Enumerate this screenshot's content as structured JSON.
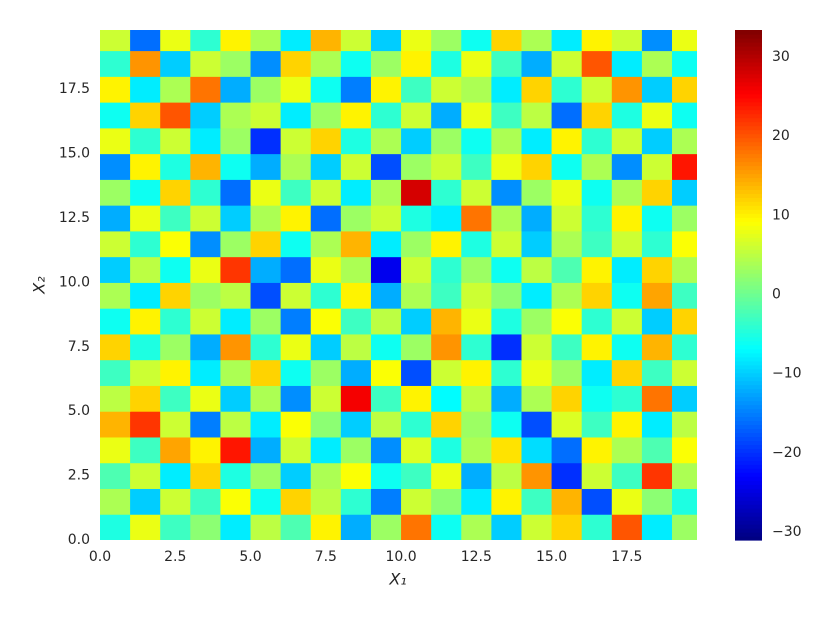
{
  "chart_data": {
    "type": "heatmap",
    "colormap": "jet",
    "xlabel": "X₁",
    "ylabel": "X₂",
    "x": [
      0.5,
      1.5,
      2.5,
      3.5,
      4.5,
      5.5,
      6.5,
      7.5,
      8.5,
      9.5,
      10.5,
      11.5,
      12.5,
      13.5,
      14.5,
      15.5,
      16.5,
      17.5,
      18.5,
      19.5
    ],
    "y": [
      0.5,
      1.5,
      2.5,
      3.5,
      4.5,
      5.5,
      6.5,
      7.5,
      8.5,
      9.5,
      10.5,
      11.5,
      12.5,
      13.5,
      14.5,
      15.5,
      16.5,
      17.5,
      18.5,
      19.5
    ],
    "z": [
      [
        -5,
        8,
        -3,
        2,
        -8,
        5,
        -2,
        10,
        -12,
        3,
        18,
        -6,
        4,
        -10,
        6,
        12,
        -4,
        20,
        -8,
        3
      ],
      [
        4,
        -10,
        6,
        -3,
        9,
        -6,
        12,
        5,
        -4,
        -15,
        6,
        2,
        -8,
        10,
        -3,
        14,
        -18,
        8,
        2,
        -5
      ],
      [
        -2,
        6,
        -8,
        12,
        -5,
        3,
        -10,
        4,
        9,
        -6,
        -3,
        8,
        -12,
        5,
        16,
        -20,
        6,
        -3,
        22,
        4
      ],
      [
        8,
        -3,
        15,
        10,
        24,
        -12,
        6,
        -8,
        3,
        -14,
        7,
        -5,
        4,
        11,
        -9,
        -16,
        10,
        4,
        -2,
        9
      ],
      [
        14,
        22,
        6,
        -15,
        5,
        -8,
        9,
        2,
        -10,
        5,
        -4,
        12,
        3,
        -6,
        -18,
        7,
        -3,
        10,
        -8,
        5
      ],
      [
        5,
        12,
        -3,
        8,
        -10,
        4,
        -14,
        6,
        26,
        -3,
        10,
        -7,
        5,
        -12,
        4,
        12,
        -6,
        -4,
        18,
        -10
      ],
      [
        -3,
        6,
        10,
        -8,
        4,
        12,
        -6,
        3,
        -12,
        9,
        -18,
        6,
        10,
        -4,
        8,
        3,
        -8,
        12,
        -3,
        6
      ],
      [
        12,
        -5,
        3,
        -12,
        16,
        -4,
        8,
        -10,
        5,
        -6,
        3,
        16,
        -4,
        -20,
        6,
        -3,
        10,
        -6,
        14,
        -4
      ],
      [
        -6,
        10,
        -4,
        6,
        -8,
        3,
        -15,
        9,
        -3,
        5,
        -10,
        14,
        8,
        -5,
        3,
        9,
        -4,
        6,
        -10,
        12
      ],
      [
        4,
        -8,
        12,
        3,
        5,
        -18,
        6,
        -4,
        10,
        -12,
        4,
        -3,
        6,
        2,
        -8,
        4,
        12,
        -6,
        15,
        -3
      ],
      [
        -10,
        5,
        -6,
        8,
        22,
        -12,
        -16,
        8,
        4,
        -24,
        6,
        -4,
        3,
        -6,
        5,
        -2,
        10,
        -8,
        12,
        4
      ],
      [
        6,
        -4,
        9,
        -14,
        3,
        12,
        -6,
        4,
        14,
        -8,
        3,
        10,
        -5,
        6,
        -10,
        4,
        -3,
        6,
        -4,
        9
      ],
      [
        -12,
        8,
        -3,
        6,
        -10,
        4,
        10,
        -16,
        3,
        6,
        -5,
        -8,
        18,
        4,
        -12,
        6,
        -4,
        10,
        -6,
        3
      ],
      [
        3,
        -6,
        12,
        -4,
        -16,
        8,
        -3,
        6,
        -8,
        4,
        28,
        -4,
        6,
        -14,
        3,
        8,
        -6,
        4,
        12,
        -10
      ],
      [
        -14,
        10,
        -5,
        14,
        -6,
        -12,
        4,
        -10,
        6,
        -18,
        3,
        6,
        -3,
        8,
        12,
        -6,
        4,
        -14,
        6,
        24
      ],
      [
        8,
        -4,
        6,
        -8,
        3,
        -20,
        6,
        12,
        -5,
        4,
        -10,
        3,
        -6,
        4,
        -8,
        10,
        -4,
        6,
        -10,
        4
      ],
      [
        -6,
        12,
        20,
        -10,
        4,
        6,
        -8,
        3,
        10,
        -4,
        6,
        -12,
        8,
        -3,
        5,
        -16,
        12,
        -5,
        8,
        -6
      ],
      [
        10,
        -8,
        4,
        18,
        -12,
        3,
        8,
        -6,
        -15,
        10,
        -3,
        6,
        4,
        -8,
        12,
        -4,
        6,
        16,
        -10,
        12
      ],
      [
        -4,
        16,
        -10,
        6,
        3,
        -14,
        12,
        4,
        -6,
        3,
        10,
        -5,
        8,
        -3,
        -12,
        6,
        20,
        -8,
        4,
        -6
      ],
      [
        6,
        -16,
        8,
        -4,
        10,
        4,
        -8,
        14,
        6,
        -10,
        8,
        3,
        -6,
        12,
        4,
        -8,
        10,
        6,
        -14,
        8
      ]
    ],
    "xlim": [
      0,
      19.83
    ],
    "ylim": [
      0,
      19.8
    ],
    "xticks": [
      {
        "value": 0,
        "label": "0.0"
      },
      2.5,
      {
        "value": 5,
        "label": "5.0"
      },
      7.5,
      {
        "value": 10,
        "label": "10.0"
      },
      12.5,
      {
        "value": 15,
        "label": "15.0"
      },
      17.5
    ],
    "yticks": [
      {
        "value": 0,
        "label": "0.0"
      },
      2.5,
      {
        "value": 5,
        "label": "5.0"
      },
      7.5,
      {
        "value": 10,
        "label": "10.0"
      },
      12.5,
      {
        "value": 15,
        "label": "15.0"
      },
      17.5
    ],
    "clim": [
      -31,
      33.4
    ],
    "cticks": [
      {
        "value": -30,
        "label": "−30"
      },
      {
        "value": -20,
        "label": "−20"
      },
      {
        "value": -10,
        "label": "−10"
      },
      0,
      10,
      20,
      30
    ]
  }
}
